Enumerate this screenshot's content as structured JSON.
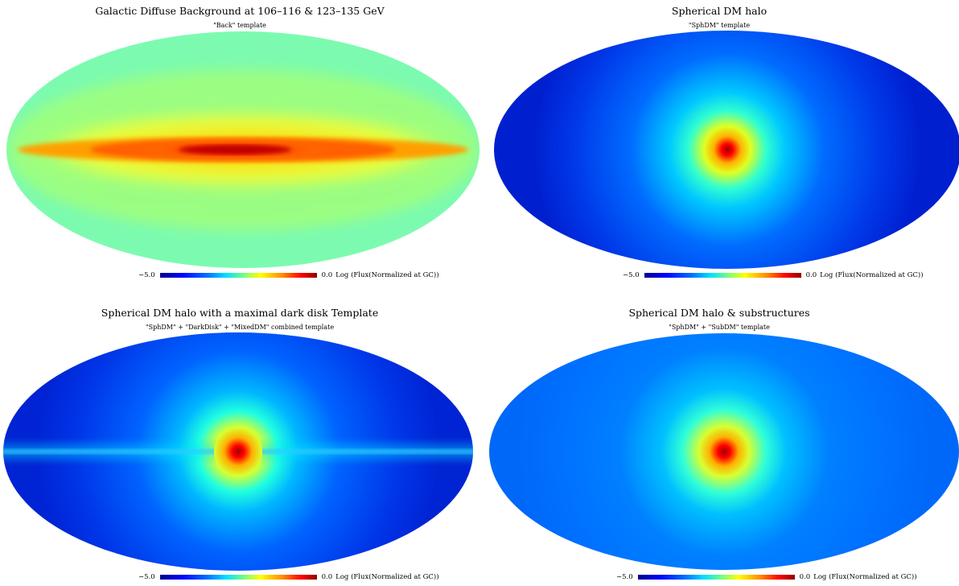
{
  "panels": [
    {
      "title": "Galactic Diffuse Background at 106–116 & 123–135 GeV",
      "subtitle": "\"Back\" template",
      "map_type": "diffuse-background"
    },
    {
      "title": "Spherical DM halo",
      "subtitle": "\"SphDM\" template",
      "map_type": "spherical-halo"
    },
    {
      "title": "Spherical DM halo with a maximal dark disk Template",
      "subtitle": "\"SphDM\" + \"DarkDisk\" + \"MixedDM\" combined template",
      "map_type": "halo-with-disk"
    },
    {
      "title": "Spherical DM halo & substructures",
      "subtitle": "\"SphDM\" + \"SubDM\" template",
      "map_type": "halo-substructures"
    }
  ],
  "colorbar": {
    "min_label": "−5.0",
    "max_label": "0.0",
    "unit_label": "Log (Flux(Normalized at GC))",
    "min": -5.0,
    "max": 0.0,
    "colormap": "jet"
  },
  "colors": {
    "dark_blue": "#00008f",
    "blue": "#0000ff",
    "cyan": "#00ffff",
    "yellow": "#ffff00",
    "red": "#ff0000",
    "dark_red": "#800000"
  }
}
